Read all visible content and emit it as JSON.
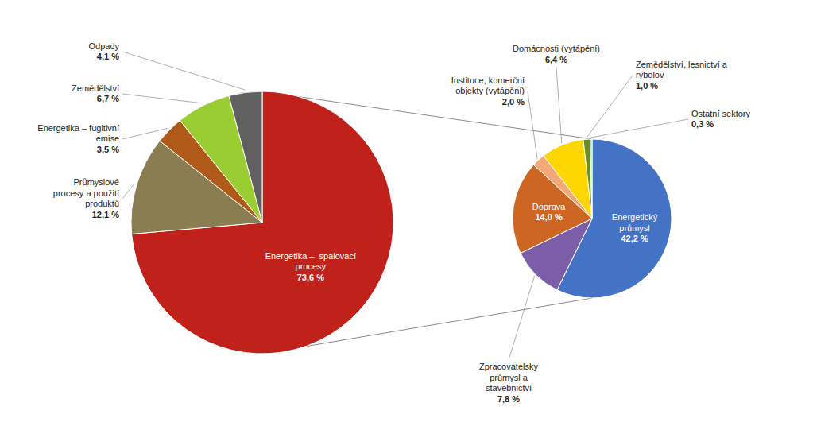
{
  "chart_data": [
    {
      "type": "pie",
      "categories": [
        "Energetika –  spalovací\nprocesy",
        "Průmyslové\nprocesy a použití\nproduktů",
        "Energetika – fugitivní\nemise",
        "Zemědělství",
        "Odpady"
      ],
      "values": [
        73.6,
        12.1,
        3.5,
        6.7,
        4.1
      ],
      "value_labels": [
        "73,6 %",
        "12,1 %",
        "3,5 %",
        "6,7 %",
        "4,1 %"
      ],
      "colors": [
        "#c0221b",
        "#8b7d52",
        "#b05a1a",
        "#9acd32",
        "#606060"
      ],
      "data_labels": true
    },
    {
      "type": "pie",
      "categories": [
        "Energetický\nprůmysl",
        "Zpracovatelsky\nprůmysl a\nstavebnictví",
        "Doprava",
        "Instituce, komerční\nobjekty (vytápění)",
        "Domácnosti (vytápění)",
        "Zemědělství, lesnictví a\nrybolov",
        "Ostatní sektory"
      ],
      "values": [
        42.2,
        7.8,
        14.0,
        2.0,
        6.4,
        1.0,
        0.3
      ],
      "value_labels": [
        "42,2 %",
        "7,8 %",
        "14,0 %",
        "2,0 %",
        "6,4 %",
        "1,0 %",
        "0,3 %"
      ],
      "colors": [
        "#4472c4",
        "#7b5ea7",
        "#cc6622",
        "#f4a878",
        "#ffd700",
        "#6b8e23",
        "#90ee90"
      ],
      "data_labels": true
    }
  ]
}
